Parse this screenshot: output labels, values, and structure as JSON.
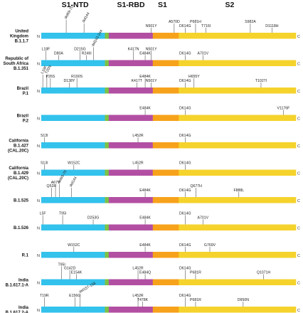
{
  "domains": [
    {
      "label": "S1-NTD",
      "color": "#33c2ec"
    },
    {
      "label": "",
      "color": "#7cc243"
    },
    {
      "label": "S1-RBD",
      "color": "#b24fa3"
    },
    {
      "label": "S1",
      "color": "#f7a21b"
    },
    {
      "label": "S2",
      "color": "#f5d32c"
    }
  ],
  "terminals": {
    "n": "N",
    "c": "C"
  },
  "variants": [
    {
      "lines": [
        "United",
        "Kingdom",
        "B.1.1.7"
      ],
      "mutations": [
        {
          "text": "del69-70",
          "pos": 0.098,
          "level": 2,
          "rot": -60
        },
        {
          "text": "del144",
          "pos": 0.168,
          "level": 1,
          "rot": -60
        },
        {
          "text": "N501Y",
          "pos": 0.432,
          "level": 0,
          "rot": 0
        },
        {
          "text": "A570D",
          "pos": 0.522,
          "level": 1,
          "rot": 0
        },
        {
          "text": "D614G",
          "pos": 0.565,
          "level": 0,
          "rot": 0
        },
        {
          "text": "P681H",
          "pos": 0.606,
          "level": 1,
          "rot": 0
        },
        {
          "text": "T716I",
          "pos": 0.647,
          "level": 0,
          "rot": 0
        },
        {
          "text": "S982A",
          "pos": 0.821,
          "level": 1,
          "rot": 0
        },
        {
          "text": "D1118H",
          "pos": 0.906,
          "level": 0,
          "rot": 0
        }
      ]
    },
    {
      "lines": [
        "Republic of",
        "South Africa",
        "B.1.351"
      ],
      "mutations": [
        {
          "text": "L18F",
          "pos": 0.018,
          "level": 1,
          "rot": 0
        },
        {
          "text": "D80A",
          "pos": 0.068,
          "level": 0,
          "rot": 0
        },
        {
          "text": "D215G",
          "pos": 0.152,
          "level": 1,
          "rot": 0
        },
        {
          "text": "R246I",
          "pos": 0.178,
          "level": 0,
          "rot": 0
        },
        {
          "text": "del242-244",
          "pos": 0.205,
          "level": 2,
          "rot": -60
        },
        {
          "text": "K417N",
          "pos": 0.362,
          "level": 1,
          "rot": 0
        },
        {
          "text": "E484K",
          "pos": 0.408,
          "level": 0,
          "rot": 0
        },
        {
          "text": "N501Y",
          "pos": 0.432,
          "level": 1,
          "rot": 0
        },
        {
          "text": "D614G",
          "pos": 0.565,
          "level": 0,
          "rot": 0
        },
        {
          "text": "A701V",
          "pos": 0.635,
          "level": 0,
          "rot": 0
        }
      ]
    },
    {
      "lines": [
        "Brazil",
        "P.1"
      ],
      "mutations": [
        {
          "text": "L18F",
          "pos": 0.006,
          "level": 2,
          "rot": -60
        },
        {
          "text": "T20N",
          "pos": 0.022,
          "level": 2,
          "rot": -60
        },
        {
          "text": "P26S",
          "pos": 0.036,
          "level": 1,
          "rot": 0
        },
        {
          "text": "D138Y",
          "pos": 0.11,
          "level": 0,
          "rot": 0
        },
        {
          "text": "R190S",
          "pos": 0.14,
          "level": 1,
          "rot": 0
        },
        {
          "text": "K417T",
          "pos": 0.375,
          "level": 0,
          "rot": 0
        },
        {
          "text": "E484K",
          "pos": 0.408,
          "level": 1,
          "rot": 0
        },
        {
          "text": "N501Y",
          "pos": 0.432,
          "level": 0,
          "rot": 0
        },
        {
          "text": "D614G",
          "pos": 0.565,
          "level": 0,
          "rot": 0
        },
        {
          "text": "H655Y",
          "pos": 0.6,
          "level": 1,
          "rot": 0
        },
        {
          "text": "T1027I",
          "pos": 0.863,
          "level": 0,
          "rot": 0
        }
      ]
    },
    {
      "lines": [
        "Brazil",
        "P.2"
      ],
      "mutations": [
        {
          "text": "E484K",
          "pos": 0.408,
          "level": 0,
          "rot": 0
        },
        {
          "text": "D614G",
          "pos": 0.565,
          "level": 0,
          "rot": 0
        },
        {
          "text": "V1176F",
          "pos": 0.951,
          "level": 0,
          "rot": 0
        }
      ]
    },
    {
      "lines": [
        "California",
        "B.1.427",
        "(CAL.20C)"
      ],
      "mutations": [
        {
          "text": "S13I",
          "pos": 0.012,
          "level": 0,
          "rot": 0
        },
        {
          "text": "L452R",
          "pos": 0.38,
          "level": 0,
          "rot": 0
        },
        {
          "text": "D614G",
          "pos": 0.565,
          "level": 0,
          "rot": 0
        }
      ]
    },
    {
      "lines": [
        "California",
        "B.1.429",
        "(CAL.20C)"
      ],
      "mutations": [
        {
          "text": "S13I",
          "pos": 0.012,
          "level": 0,
          "rot": 0
        },
        {
          "text": "W152C",
          "pos": 0.128,
          "level": 0,
          "rot": 0
        },
        {
          "text": "L452R",
          "pos": 0.38,
          "level": 0,
          "rot": 0
        },
        {
          "text": "D614G",
          "pos": 0.565,
          "level": 0,
          "rot": 0
        }
      ]
    },
    {
      "lines": [
        "B.1.525"
      ],
      "mutations": [
        {
          "text": "Q52R",
          "pos": 0.04,
          "level": 1,
          "rot": 0
        },
        {
          "text": "A67V",
          "pos": 0.056,
          "level": 2,
          "rot": 0
        },
        {
          "text": "del69-70",
          "pos": 0.072,
          "level": 2,
          "rot": -60
        },
        {
          "text": "del144",
          "pos": 0.118,
          "level": 1,
          "rot": -60
        },
        {
          "text": "E484K",
          "pos": 0.408,
          "level": 0,
          "rot": 0
        },
        {
          "text": "D614G",
          "pos": 0.565,
          "level": 0,
          "rot": 0
        },
        {
          "text": "Q677H",
          "pos": 0.608,
          "level": 1,
          "rot": 0
        },
        {
          "text": "F888L",
          "pos": 0.776,
          "level": 0,
          "rot": 0
        }
      ]
    },
    {
      "lines": [
        "B.1.526"
      ],
      "mutations": [
        {
          "text": "L5F",
          "pos": 0.006,
          "level": 1,
          "rot": 0
        },
        {
          "text": "T95I",
          "pos": 0.084,
          "level": 1,
          "rot": 0
        },
        {
          "text": "D253G",
          "pos": 0.204,
          "level": 0,
          "rot": 0
        },
        {
          "text": "E484K",
          "pos": 0.408,
          "level": 0,
          "rot": 0
        },
        {
          "text": "D614G",
          "pos": 0.565,
          "level": 1,
          "rot": 0
        },
        {
          "text": "A701V",
          "pos": 0.635,
          "level": 0,
          "rot": 0
        }
      ]
    },
    {
      "lines": [
        "R.1"
      ],
      "mutations": [
        {
          "text": "W152C",
          "pos": 0.128,
          "level": 0,
          "rot": 0
        },
        {
          "text": "E484K",
          "pos": 0.408,
          "level": 0,
          "rot": 0
        },
        {
          "text": "D614G",
          "pos": 0.565,
          "level": 0,
          "rot": 0
        },
        {
          "text": "G769V",
          "pos": 0.662,
          "level": 0,
          "rot": 0
        }
      ]
    },
    {
      "lines": [
        "India",
        "B.1.617.1-A"
      ],
      "mutations": [
        {
          "text": "T95I",
          "pos": 0.08,
          "level": 2,
          "rot": 0
        },
        {
          "text": "G142D",
          "pos": 0.112,
          "level": 1,
          "rot": 0
        },
        {
          "text": "E154K",
          "pos": 0.138,
          "level": 0,
          "rot": 0
        },
        {
          "text": "L452R",
          "pos": 0.38,
          "level": 1,
          "rot": 0
        },
        {
          "text": "E484Q",
          "pos": 0.408,
          "level": 0,
          "rot": 0
        },
        {
          "text": "D614G",
          "pos": 0.565,
          "level": 1,
          "rot": 0
        },
        {
          "text": "P681R",
          "pos": 0.606,
          "level": 0,
          "rot": 0
        },
        {
          "text": "Q1071H",
          "pos": 0.873,
          "level": 0,
          "rot": 0
        }
      ]
    },
    {
      "lines": [
        "India",
        "B.1.617.2-A"
      ],
      "mutations": [
        {
          "text": "T19R",
          "pos": 0.012,
          "level": 1,
          "rot": 0
        },
        {
          "text": "E156G",
          "pos": 0.132,
          "level": 1,
          "rot": 0
        },
        {
          "text": "del157-158",
          "pos": 0.152,
          "level": 2,
          "rot": -30
        },
        {
          "text": "L452R",
          "pos": 0.38,
          "level": 1,
          "rot": 0
        },
        {
          "text": "T478K",
          "pos": 0.398,
          "level": 0,
          "rot": 0
        },
        {
          "text": "D614G",
          "pos": 0.565,
          "level": 1,
          "rot": 0
        },
        {
          "text": "P681R",
          "pos": 0.606,
          "level": 0,
          "rot": 0
        },
        {
          "text": "D950N",
          "pos": 0.793,
          "level": 0,
          "rot": 0
        }
      ]
    }
  ]
}
